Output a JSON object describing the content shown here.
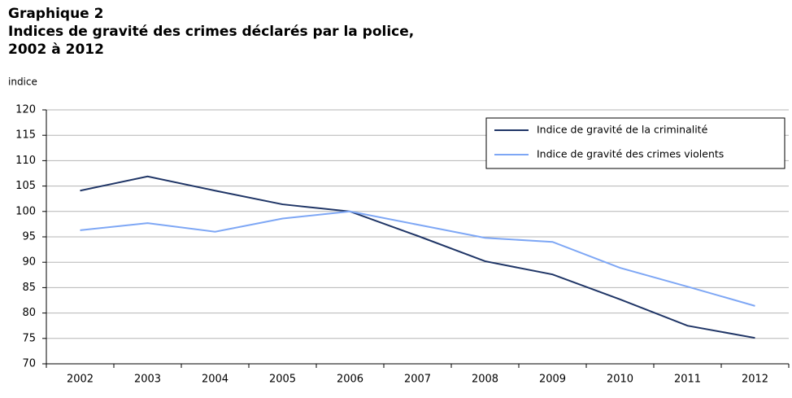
{
  "chart_data": {
    "type": "line",
    "title": [
      "Graphique 2",
      "Indices de gravité des crimes déclarés par la police,",
      "2002 à 2012"
    ],
    "y_label": "indice",
    "categories": [
      "2002",
      "2003",
      "2004",
      "2005",
      "2006",
      "2007",
      "2008",
      "2009",
      "2010",
      "2011",
      "2012"
    ],
    "series": [
      {
        "name": "Indice de gravité de la criminalité",
        "color": "#1f3566",
        "values": [
          104.1,
          106.9,
          104.1,
          101.4,
          100,
          95.2,
          90.2,
          87.6,
          82.7,
          77.5,
          75.1
        ]
      },
      {
        "name": "Indice de gravité des crimes violents",
        "color": "#7ea7f5",
        "values": [
          96.3,
          97.7,
          96.0,
          98.6,
          100,
          97.4,
          94.8,
          94.0,
          88.9,
          85.2,
          81.4
        ]
      }
    ],
    "ylim": [
      70,
      120
    ],
    "yticks": [
      70,
      75,
      80,
      85,
      90,
      95,
      100,
      105,
      110,
      115,
      120
    ],
    "grid": true,
    "legend": "top-right"
  }
}
